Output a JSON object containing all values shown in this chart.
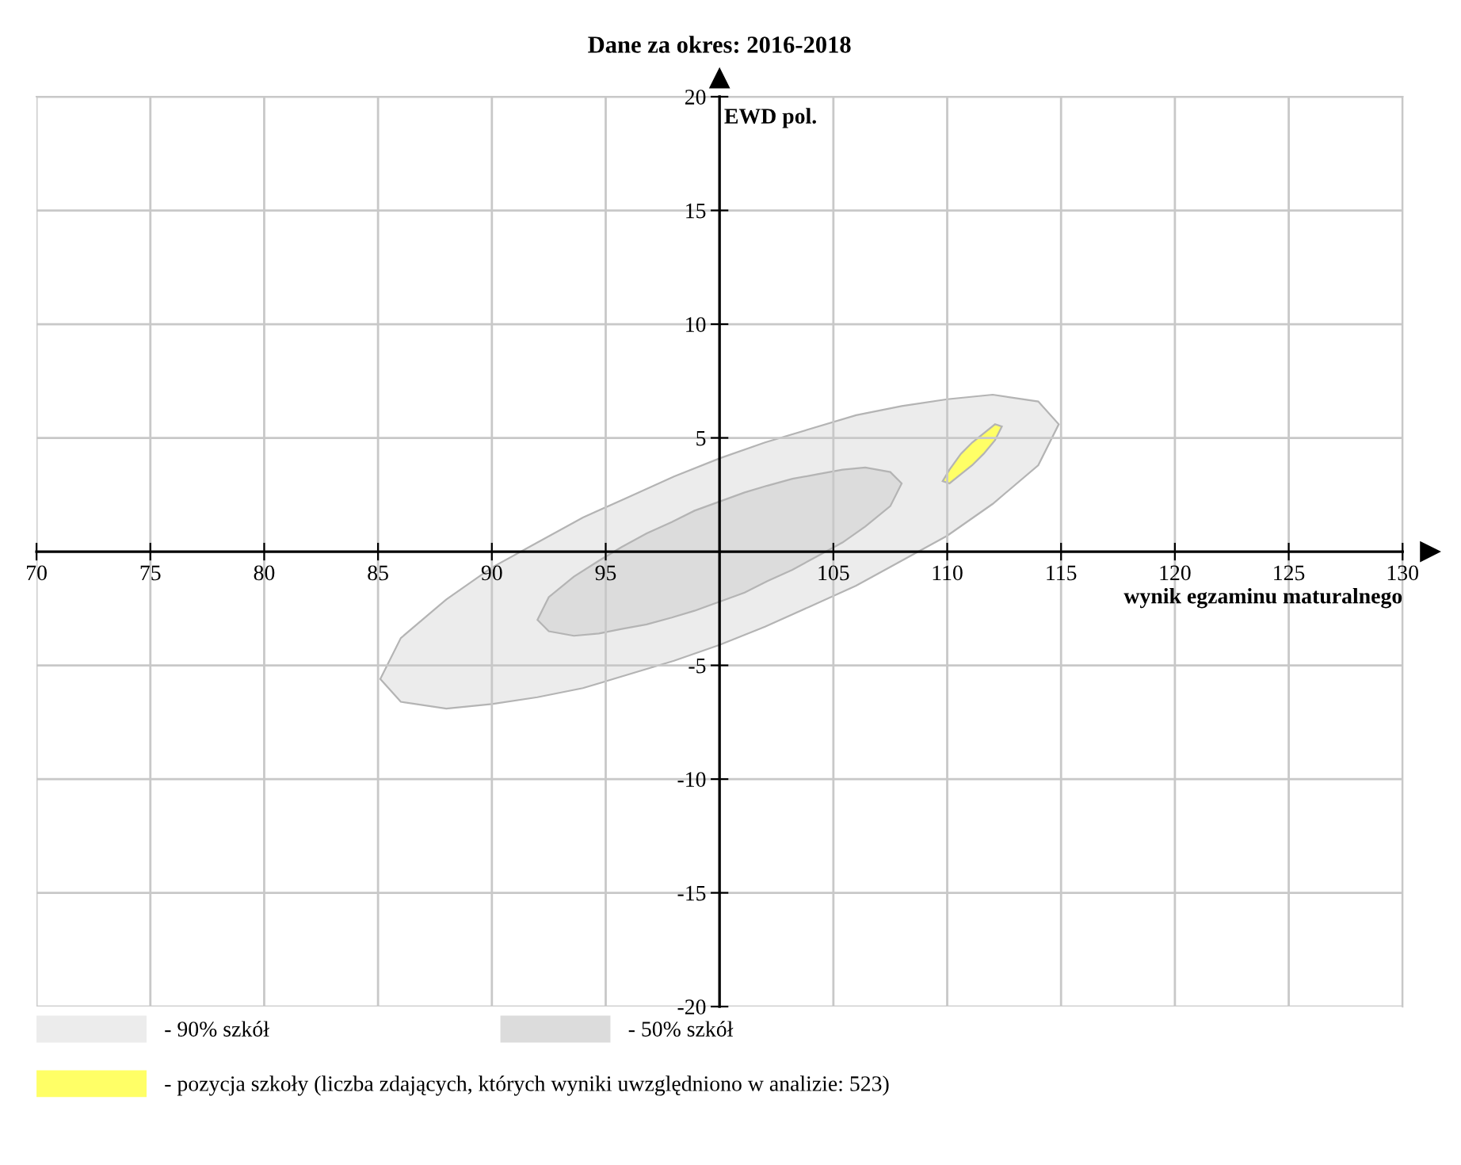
{
  "chart_data": {
    "type": "area",
    "title": "Dane za okres: 2016-2018",
    "xlabel": "wynik egzaminu maturalnego",
    "ylabel": "EWD pol.",
    "xlim": [
      70,
      130
    ],
    "ylim": [
      -20,
      20
    ],
    "xticks": [
      70,
      75,
      80,
      85,
      90,
      95,
      105,
      110,
      115,
      120,
      125,
      130
    ],
    "yticks": [
      -20,
      -15,
      -10,
      -5,
      5,
      10,
      15,
      20
    ],
    "grid": true,
    "legend": "bottom",
    "series": [
      {
        "name": "- 90% szkół",
        "color": "#ececec",
        "x": [
          85.1,
          86,
          88,
          90,
          92,
          94,
          96,
          98,
          100,
          102,
          104,
          106,
          108,
          110,
          112,
          114,
          114.9,
          114,
          112,
          110,
          108,
          106,
          104,
          102,
          100,
          98,
          96,
          94,
          92,
          90,
          88,
          86
        ],
        "values": [
          -5.6,
          -3.8,
          -2.1,
          -0.7,
          0.4,
          1.5,
          2.4,
          3.3,
          4.1,
          4.8,
          5.4,
          6.0,
          6.4,
          6.7,
          6.9,
          6.6,
          5.6,
          3.8,
          2.1,
          0.7,
          -0.4,
          -1.5,
          -2.4,
          -3.3,
          -4.1,
          -4.8,
          -5.4,
          -6.0,
          -6.4,
          -6.7,
          -6.9,
          -6.6
        ]
      },
      {
        "name": "- 50% szkół",
        "color": "#dcdcdc",
        "x": [
          92.0,
          92.5,
          93.6,
          94.7,
          95.7,
          96.8,
          97.9,
          98.9,
          100,
          101.1,
          102.1,
          103.2,
          104.3,
          105.4,
          106.4,
          107.5,
          108.0,
          107.5,
          106.4,
          105.4,
          104.3,
          103.2,
          102.1,
          101.1,
          100,
          98.9,
          97.9,
          96.8,
          95.7,
          94.7,
          93.6,
          92.5
        ],
        "values": [
          -3.0,
          -2.0,
          -1.1,
          -0.4,
          0.2,
          0.8,
          1.3,
          1.8,
          2.2,
          2.6,
          2.9,
          3.2,
          3.4,
          3.6,
          3.7,
          3.5,
          3.0,
          2.0,
          1.1,
          0.4,
          -0.2,
          -0.8,
          -1.3,
          -1.8,
          -2.2,
          -2.6,
          -2.9,
          -3.2,
          -3.4,
          -3.6,
          -3.7,
          -3.5
        ]
      },
      {
        "name": "- pozycja szkoły (liczba zdających, których wyniki uwzględniono w analizie: 523)",
        "color": "#ffff66",
        "x": [
          109.8,
          110.1,
          110.6,
          111.1,
          111.6,
          112.1,
          112.4,
          112.1,
          111.6,
          111.1,
          110.6,
          110.1
        ],
        "values": [
          3.1,
          3.6,
          4.3,
          4.8,
          5.2,
          5.6,
          5.5,
          4.9,
          4.3,
          3.8,
          3.4,
          3.0
        ]
      }
    ]
  }
}
